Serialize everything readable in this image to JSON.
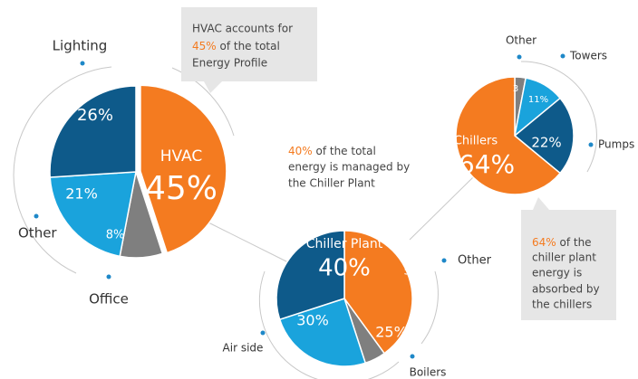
{
  "chart_data": [
    {
      "type": "pie",
      "categories": [
        "HVAC",
        "Office",
        "Other",
        "Lighting"
      ],
      "values": [
        45,
        8,
        21,
        26
      ],
      "value_labels": [
        "45%",
        "8%",
        "21%",
        "26%"
      ],
      "colors": [
        "#f47b20",
        "#7f7f7f",
        "#1aa3dc",
        "#0e5a8a"
      ],
      "annotation": {
        "lines": [
          "HVAC accounts for",
          "45%",
          " of the total",
          "Energy Profile"
        ]
      }
    },
    {
      "type": "pie",
      "categories": [
        "Chiller Plant",
        "Other",
        "Boilers",
        "Air side"
      ],
      "values": [
        40,
        5,
        25,
        30
      ],
      "value_labels": [
        "40%",
        "5%",
        "25%",
        "30%"
      ],
      "colors": [
        "#f47b20",
        "#7f7f7f",
        "#1aa3dc",
        "#0e5a8a"
      ],
      "annotation": {
        "lines": [
          "40%",
          " of the total",
          "energy is managed by",
          "the Chiller Plant"
        ]
      }
    },
    {
      "type": "pie",
      "categories": [
        "Other",
        "Towers",
        "Pumps",
        "Chillers"
      ],
      "values": [
        3,
        11,
        22,
        64
      ],
      "value_labels": [
        "3",
        "11%",
        "22%",
        "64%"
      ],
      "colors": [
        "#7f7f7f",
        "#1aa3dc",
        "#0e5a8a",
        "#f47b20"
      ],
      "annotation": {
        "lines": [
          "64%",
          " of the",
          "chiller plant",
          "energy is",
          "absorbed by",
          "the chillers"
        ]
      }
    }
  ]
}
